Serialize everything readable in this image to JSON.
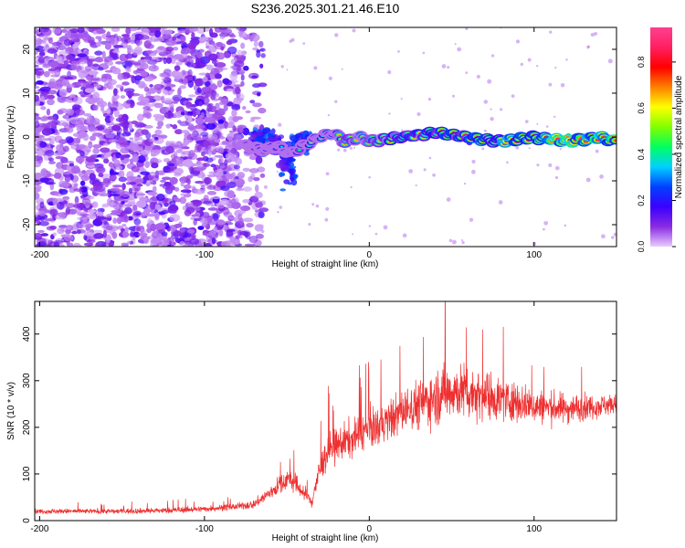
{
  "title": "S236.2025.301.21.46.E10",
  "colorbar": {
    "label": "Normalized spectral amplitude",
    "range": [
      0,
      0.95
    ],
    "ticks": [
      0.0,
      0.2,
      0.4,
      0.6,
      0.8
    ],
    "tick_labels": [
      "0.0",
      "0.2",
      "0.4",
      "0.6",
      "0.8"
    ],
    "stops": [
      "#e8ccff",
      "#8a2be2",
      "#3a00ff",
      "#0040ff",
      "#00d0ff",
      "#00ff60",
      "#80ff00",
      "#ffff00",
      "#ff8000",
      "#ff0000",
      "#ff2060",
      "#ff4090"
    ]
  },
  "chart_data": [
    {
      "type": "heatmap",
      "name": "spectrogram",
      "title": "S236.2025.301.21.46.E10",
      "xlabel": "Height of straight line (km)",
      "ylabel": "Frequency (Hz)",
      "xlim": [
        -203,
        150
      ],
      "ylim": [
        -25,
        25
      ],
      "xticks": [
        -200,
        -100,
        0,
        100
      ],
      "xtick_labels": [
        "-200",
        "-100",
        "0",
        "100"
      ],
      "yticks": [
        -20,
        -10,
        0,
        10,
        20
      ],
      "ytick_labels": [
        "-20",
        "-10",
        "0",
        "10",
        "20"
      ],
      "value_label": "Normalized spectral amplitude",
      "regions": [
        {
          "description": "broadband noise",
          "x_range": [
            -203,
            -72
          ],
          "freq_range": [
            -25,
            25
          ],
          "amplitude": [
            0.0,
            0.15
          ]
        },
        {
          "description": "carrier onset",
          "x_range": [
            -72,
            -35
          ],
          "freq_range": [
            -12,
            2
          ],
          "amplitude": [
            0.1,
            0.35
          ]
        },
        {
          "description": "carrier line",
          "x_range": [
            -35,
            150
          ],
          "freq_range": [
            -2,
            2
          ],
          "amplitude": [
            0.3,
            0.95
          ]
        }
      ],
      "carrier_line": {
        "x": [
          -75,
          -65,
          -55,
          -48,
          -40,
          -30,
          -22,
          -15,
          -5,
          0,
          20,
          40,
          60,
          80,
          100,
          120,
          140,
          150
        ],
        "freq": [
          -2,
          -3,
          -2,
          -4,
          -2,
          0,
          1,
          -1,
          0,
          -1,
          0,
          1,
          0,
          -1,
          0,
          -1,
          0,
          -1
        ],
        "amplitude": [
          0.2,
          0.25,
          0.3,
          0.35,
          0.45,
          0.5,
          0.55,
          0.6,
          0.6,
          0.65,
          0.7,
          0.72,
          0.75,
          0.8,
          0.85,
          0.9,
          0.9,
          0.9
        ]
      }
    },
    {
      "type": "line",
      "name": "snr",
      "xlabel": "Height of straight line (km)",
      "ylabel": "SNR (10 * v/v)",
      "xlim": [
        -203,
        150
      ],
      "ylim": [
        0,
        470
      ],
      "xticks": [
        -200,
        -100,
        0,
        100
      ],
      "xtick_labels": [
        "-200",
        "-100",
        "0",
        "100"
      ],
      "yticks": [
        0,
        100,
        200,
        300,
        400
      ],
      "ytick_labels": [
        "0",
        "100",
        "200",
        "300",
        "400"
      ],
      "color": "#ee3030",
      "series": [
        {
          "name": "SNR",
          "x": [
            -203,
            -180,
            -150,
            -120,
            -100,
            -80,
            -70,
            -60,
            -50,
            -45,
            -40,
            -35,
            -30,
            -25,
            -20,
            -15,
            -10,
            -5,
            0,
            10,
            20,
            30,
            40,
            50,
            60,
            70,
            80,
            90,
            100,
            120,
            150
          ],
          "mean": [
            20,
            20,
            20,
            22,
            25,
            30,
            35,
            60,
            90,
            80,
            60,
            40,
            110,
            150,
            160,
            170,
            175,
            190,
            195,
            210,
            235,
            250,
            265,
            280,
            275,
            270,
            260,
            255,
            245,
            240,
            250
          ],
          "spread": [
            10,
            10,
            10,
            12,
            12,
            14,
            18,
            30,
            45,
            40,
            35,
            30,
            60,
            70,
            70,
            75,
            75,
            80,
            80,
            80,
            90,
            100,
            110,
            115,
            110,
            100,
            90,
            80,
            70,
            60,
            40
          ],
          "peak": {
            "x": 46,
            "y": 470
          }
        }
      ]
    }
  ]
}
